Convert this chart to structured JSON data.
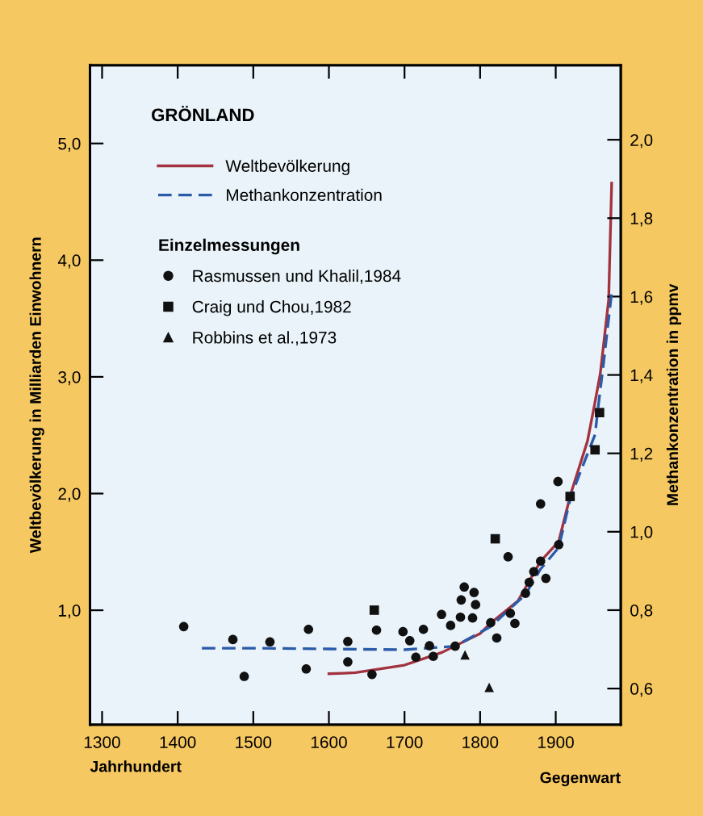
{
  "chart_data": {
    "type": "line",
    "title": "GRÖNLAND",
    "xlabel": "Jahrhundert",
    "ylabel": "Weltbevölkerung in Milliarden Einwohnern",
    "y2label": "Methankonzentration in ppmv",
    "legend_title": "Einzelmessungen",
    "annotations": [
      "Gegenwart"
    ],
    "xlim": [
      1284,
      1986
    ],
    "xticks": [
      1300,
      1400,
      1500,
      1600,
      1700,
      1800,
      1900
    ],
    "ylim": [
      0.02,
      5.67
    ],
    "yticks": [
      {
        "value": 1,
        "label": "1,0"
      },
      {
        "value": 2,
        "label": "2,0"
      },
      {
        "value": 3,
        "label": "3,0"
      },
      {
        "value": 4,
        "label": "4,0"
      },
      {
        "value": 5,
        "label": "5,0"
      }
    ],
    "y2lim": [
      0.508,
      2.19
    ],
    "y2ticks": [
      {
        "value": 0.6,
        "label": "0,6"
      },
      {
        "value": 0.8,
        "label": "0,8"
      },
      {
        "value": 1.0,
        "label": "1,0"
      },
      {
        "value": 1.2,
        "label": "1,2"
      },
      {
        "value": 1.4,
        "label": "1,4"
      },
      {
        "value": 1.6,
        "label": "1,6"
      },
      {
        "value": 1.8,
        "label": "1,8"
      },
      {
        "value": 2.0,
        "label": "2,0"
      }
    ],
    "grid": false,
    "legend": "top left",
    "series": [
      {
        "name": "Weltbevölkerung",
        "color": "#a3323f",
        "line_style": "solid",
        "marker": "none",
        "x": [
          1600,
          1620,
          1635,
          1700,
          1750,
          1800,
          1814,
          1850,
          1880,
          1904,
          1920,
          1942,
          1951,
          1959,
          1970,
          1974
        ],
        "values": [
          0.456,
          0.46,
          0.465,
          0.53,
          0.64,
          0.8,
          0.89,
          1.08,
          1.42,
          1.59,
          2.0,
          2.45,
          2.75,
          3.03,
          3.66,
          4.66
        ]
      },
      {
        "name": "Methankonzentration",
        "type": "line",
        "axis": "y2",
        "color": "#2a5aa8",
        "line_style": "dashed",
        "marker": "none",
        "x": [
          1432,
          1500,
          1600,
          1700,
          1767,
          1814,
          1860,
          1880,
          1904,
          1920,
          1952,
          1956,
          1963,
          1974
        ],
        "values": [
          0.703,
          0.703,
          0.701,
          0.699,
          0.708,
          0.758,
          0.84,
          0.905,
          0.96,
          1.09,
          1.248,
          1.316,
          1.426,
          1.61
        ]
      },
      {
        "name": "Rasmussen und Khalil,1984",
        "type": "scatter",
        "axis": "y2",
        "color": "#111111",
        "marker": "circle",
        "x": [
          1408,
          1473,
          1488,
          1522,
          1573,
          1570,
          1625,
          1625,
          1663,
          1657,
          1698,
          1707,
          1725,
          1715,
          1733,
          1738,
          1749,
          1761,
          1767,
          1774,
          1775,
          1779,
          1792,
          1794,
          1790,
          1837,
          1814,
          1822,
          1840,
          1846,
          1860,
          1865,
          1871,
          1880,
          1887,
          1904,
          1880,
          1903
        ],
        "values": [
          0.758,
          0.725,
          0.631,
          0.719,
          0.751,
          0.65,
          0.72,
          0.668,
          0.749,
          0.636,
          0.745,
          0.722,
          0.751,
          0.68,
          0.709,
          0.682,
          0.789,
          0.761,
          0.708,
          0.782,
          0.826,
          0.859,
          0.845,
          0.814,
          0.78,
          0.936,
          0.768,
          0.729,
          0.792,
          0.766,
          0.843,
          0.871,
          0.898,
          0.925,
          0.881,
          0.967,
          1.071,
          1.128
        ]
      },
      {
        "name": "Craig und Chou,1982",
        "type": "scatter",
        "axis": "y2",
        "color": "#111111",
        "marker": "square",
        "x": [
          1660,
          1820,
          1919,
          1952,
          1958
        ],
        "values": [
          0.8,
          0.982,
          1.09,
          1.209,
          1.304
        ]
      },
      {
        "name": "Robbins et al.,1973",
        "type": "scatter",
        "axis": "y2",
        "color": "#111111",
        "marker": "triangle",
        "x": [
          1780,
          1812
        ],
        "values": [
          0.686,
          0.603
        ]
      }
    ]
  }
}
